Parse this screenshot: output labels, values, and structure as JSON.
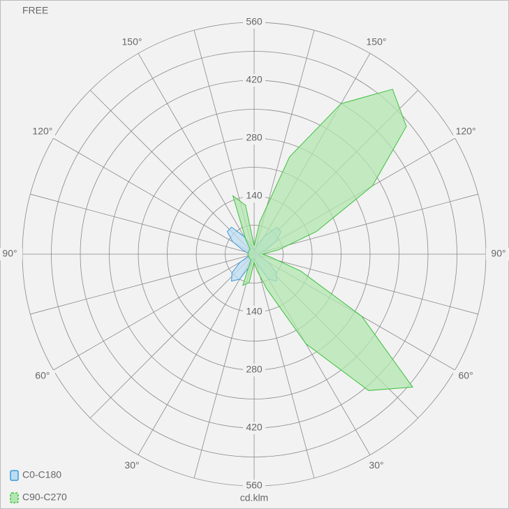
{
  "chart_data": {
    "type": "polar",
    "title": "FREE",
    "axis_label": "cd.klm",
    "rlim": [
      0,
      560
    ],
    "rticks": [
      140,
      280,
      420,
      560
    ],
    "rminor_ticks": [
      70,
      210,
      350,
      490
    ],
    "angle_grid": 15,
    "angle_ticks": [
      {
        "value": 30,
        "label": "30°"
      },
      {
        "value": 60,
        "label": "60°"
      },
      {
        "value": 90,
        "label": "90°"
      },
      {
        "value": 120,
        "label": "120°"
      },
      {
        "value": 150,
        "label": "150°"
      }
    ],
    "x": [
      0,
      10,
      20,
      30,
      40,
      50,
      60,
      70,
      80,
      90,
      100,
      110,
      120,
      130,
      140,
      150,
      160,
      170,
      180,
      190,
      200,
      210,
      220,
      230,
      240,
      250,
      260,
      270,
      280,
      290,
      300,
      310,
      320,
      330,
      340,
      350
    ],
    "series": [
      {
        "name": "C0-C180",
        "color": "#3a9ad9",
        "fill": "#bcdcf2",
        "values": [
          10,
          15,
          30,
          70,
          85,
          70,
          40,
          15,
          10,
          10,
          15,
          30,
          60,
          85,
          85,
          50,
          25,
          12,
          10,
          12,
          25,
          50,
          85,
          85,
          60,
          30,
          15,
          10,
          10,
          15,
          40,
          70,
          85,
          70,
          30,
          15
        ]
      },
      {
        "name": "C90-C270",
        "color": "#3cc03c",
        "fill": "#b3e6b0",
        "values": [
          20,
          40,
          90,
          250,
          430,
          500,
          300,
          120,
          40,
          20,
          60,
          160,
          330,
          480,
          520,
          420,
          250,
          80,
          20,
          120,
          150,
          40,
          15,
          15,
          15,
          15,
          15,
          15,
          15,
          15,
          15,
          15,
          15,
          15,
          80,
          70
        ]
      }
    ],
    "legend": "bottom-left"
  }
}
